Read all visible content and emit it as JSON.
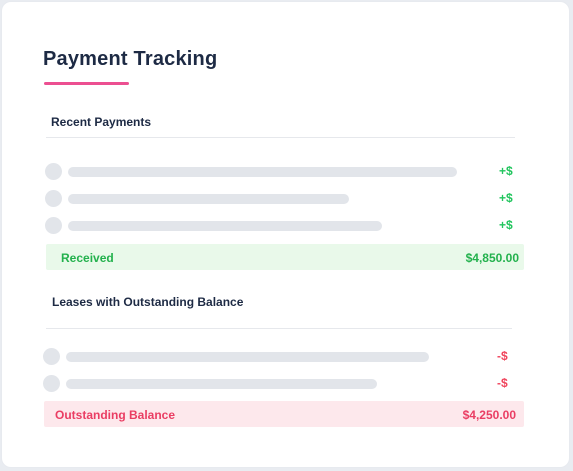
{
  "title": "Payment Tracking",
  "colors": {
    "accent": "#ec4f91",
    "positive": "#22c55e",
    "negative": "#f0445c",
    "received_bg": "#e9f9ea",
    "outstanding_bg": "#fde8ec"
  },
  "recent_payments": {
    "heading": "Recent Payments",
    "rows": [
      {
        "amount": "+$"
      },
      {
        "amount": "+$"
      },
      {
        "amount": "+$"
      }
    ],
    "summary": {
      "label": "Received",
      "value": "$4,850.00"
    }
  },
  "outstanding": {
    "heading": "Leases with Outstanding Balance",
    "rows": [
      {
        "amount": "-$"
      },
      {
        "amount": "-$"
      }
    ],
    "summary": {
      "label": "Outstanding Balance",
      "value": "$4,250.00"
    }
  }
}
